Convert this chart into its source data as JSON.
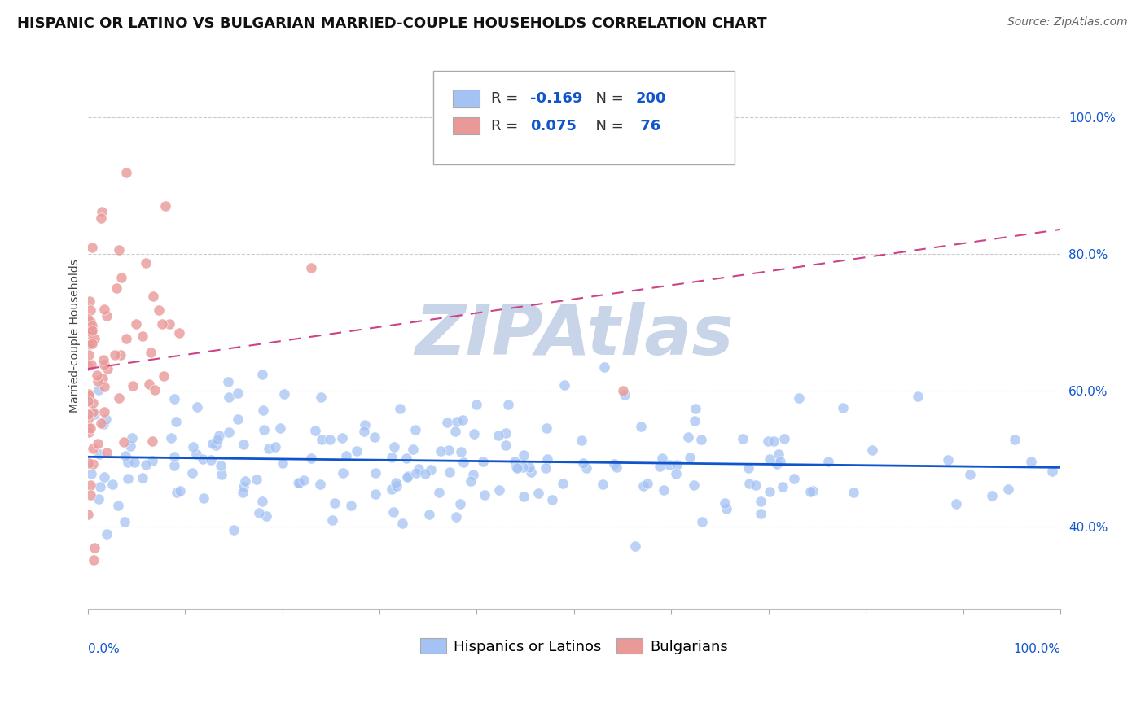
{
  "title": "HISPANIC OR LATINO VS BULGARIAN MARRIED-COUPLE HOUSEHOLDS CORRELATION CHART",
  "source": "Source: ZipAtlas.com",
  "ylabel": "Married-couple Households",
  "watermark": "ZIPAtlas",
  "blue_scatter_color": "#a4c2f4",
  "pink_scatter_color": "#ea9999",
  "blue_line_color": "#1155cc",
  "pink_line_color": "#cc4488",
  "r_blue": -0.169,
  "n_blue": 200,
  "r_pink": 0.075,
  "n_pink": 76,
  "xmin": 0.0,
  "xmax": 1.0,
  "ymin": 0.28,
  "ymax": 1.08,
  "ytick_vals": [
    0.4,
    0.6,
    0.8,
    1.0
  ],
  "ytick_labels": [
    "40.0%",
    "60.0%",
    "80.0%",
    "100.0%"
  ],
  "title_fontsize": 13,
  "source_fontsize": 10,
  "axis_label_fontsize": 10,
  "tick_fontsize": 11,
  "legend_fontsize": 13,
  "watermark_fontsize": 62,
  "watermark_color": "#c8d5e8",
  "background_color": "#ffffff",
  "grid_color": "#cccccc",
  "text_blue": "#1155cc",
  "text_dark": "#222222"
}
